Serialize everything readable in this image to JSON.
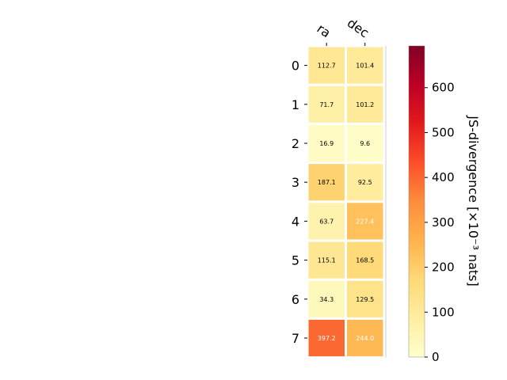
{
  "chart_data": {
    "type": "heatmap",
    "columns": [
      "ra",
      "dec"
    ],
    "rows": [
      "0",
      "1",
      "2",
      "3",
      "4",
      "5",
      "6",
      "7"
    ],
    "values": [
      [
        112.7,
        101.4
      ],
      [
        71.7,
        101.2
      ],
      [
        16.9,
        9.6
      ],
      [
        187.1,
        92.5
      ],
      [
        63.7,
        227.4
      ],
      [
        115.1,
        168.5
      ],
      [
        34.3,
        129.5
      ],
      [
        397.2,
        244.0
      ]
    ],
    "value_labels": [
      [
        "112.7",
        "101.4"
      ],
      [
        "71.7",
        "101.2"
      ],
      [
        "16.9",
        "9.6"
      ],
      [
        "187.1",
        "92.5"
      ],
      [
        "63.7",
        "227.4"
      ],
      [
        "115.1",
        "168.5"
      ],
      [
        "34.3",
        "129.5"
      ],
      [
        "397.2",
        "244.0"
      ]
    ],
    "colorbar": {
      "label": "JS-divergence [×10⁻³ nats]",
      "range": [
        0,
        693
      ],
      "ticks": [
        0,
        100,
        200,
        300,
        400,
        500,
        600
      ],
      "colormap": "YlOrRd"
    }
  }
}
